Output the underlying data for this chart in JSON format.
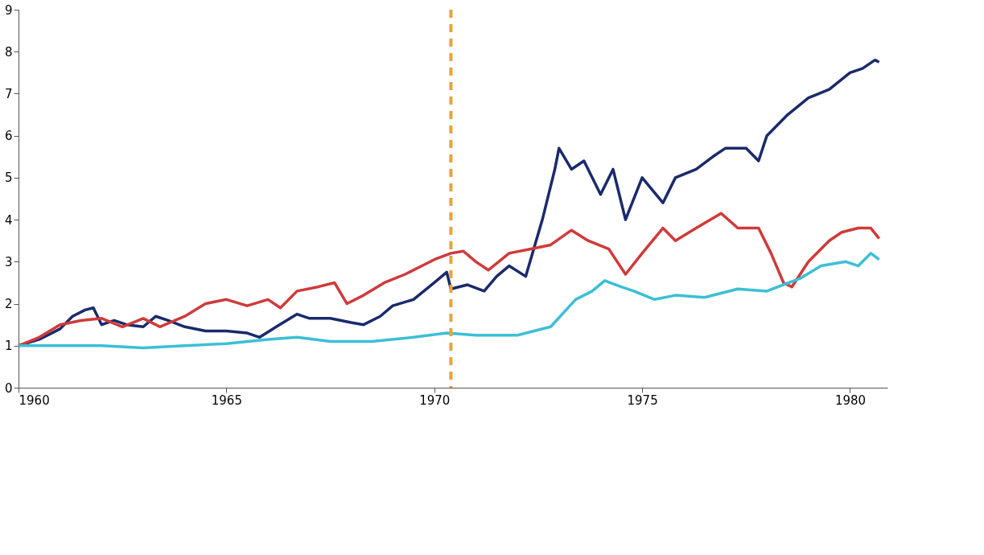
{
  "chart_data": {
    "type": "line",
    "xlim": [
      1960,
      1980.9
    ],
    "xticks": [
      1960,
      1965,
      1970,
      1975,
      1980
    ],
    "ylim": [
      0,
      9
    ],
    "yticks": [
      0,
      1,
      2,
      3,
      4,
      5,
      6,
      7,
      8,
      9
    ],
    "grid": false,
    "line_style": "solid",
    "ref_lines": [
      {
        "axis": "x",
        "value": 1970.4,
        "color": "#e8a33a",
        "line_style": "dashed"
      }
    ],
    "series": [
      {
        "color": "#1a2a6c",
        "x": [
          1960,
          1960.5,
          1961,
          1961.3,
          1961.6,
          1961.8,
          1962,
          1962.3,
          1962.6,
          1963,
          1963.3,
          1963.6,
          1964,
          1964.5,
          1965,
          1965.5,
          1965.8,
          1966.2,
          1966.7,
          1967,
          1967.5,
          1968,
          1968.3,
          1968.7,
          1969,
          1969.5,
          1970,
          1970.3,
          1970.4,
          1970.8,
          1971.2,
          1971.5,
          1971.8,
          1972.2,
          1972.6,
          1972.9,
          1973.0,
          1973.3,
          1973.6,
          1974,
          1974.3,
          1974.6,
          1975,
          1975.5,
          1975.8,
          1976.3,
          1976.7,
          1977,
          1977.5,
          1977.8,
          1978,
          1978.5,
          1979,
          1979.5,
          1980,
          1980.3,
          1980.6,
          1980.7
        ],
        "values": [
          1.0,
          1.15,
          1.4,
          1.7,
          1.85,
          1.9,
          1.5,
          1.6,
          1.5,
          1.45,
          1.7,
          1.6,
          1.45,
          1.35,
          1.35,
          1.3,
          1.2,
          1.45,
          1.75,
          1.65,
          1.65,
          1.55,
          1.5,
          1.7,
          1.95,
          2.1,
          2.5,
          2.75,
          2.35,
          2.45,
          2.3,
          2.65,
          2.9,
          2.65,
          4.0,
          5.2,
          5.7,
          5.2,
          5.4,
          4.6,
          5.2,
          4.0,
          5.0,
          4.4,
          5.0,
          5.2,
          5.5,
          5.7,
          5.7,
          5.4,
          6.0,
          6.5,
          6.9,
          7.1,
          7.5,
          7.6,
          7.8,
          7.75
        ]
      },
      {
        "color": "#d03a3a",
        "x": [
          1960,
          1960.5,
          1961,
          1961.5,
          1962,
          1962.5,
          1963,
          1963.4,
          1964,
          1964.5,
          1965,
          1965.5,
          1966,
          1966.3,
          1966.7,
          1967.2,
          1967.6,
          1967.9,
          1968.3,
          1968.8,
          1969.3,
          1969.8,
          1970.0,
          1970.4,
          1970.7,
          1971,
          1971.3,
          1971.8,
          1972.3,
          1972.8,
          1973.3,
          1973.7,
          1974.2,
          1974.6,
          1975,
          1975.5,
          1975.8,
          1976.3,
          1976.9,
          1977.3,
          1977.8,
          1978.1,
          1978.4,
          1978.6,
          1979,
          1979.5,
          1979.8,
          1980.2,
          1980.5,
          1980.7
        ],
        "values": [
          1.0,
          1.2,
          1.5,
          1.6,
          1.65,
          1.45,
          1.65,
          1.45,
          1.7,
          2.0,
          2.1,
          1.95,
          2.1,
          1.9,
          2.3,
          2.4,
          2.5,
          2.0,
          2.2,
          2.5,
          2.7,
          2.95,
          3.05,
          3.2,
          3.25,
          3.0,
          2.8,
          3.2,
          3.3,
          3.4,
          3.75,
          3.5,
          3.3,
          2.7,
          3.2,
          3.8,
          3.5,
          3.8,
          4.15,
          3.8,
          3.8,
          3.2,
          2.5,
          2.4,
          3.0,
          3.5,
          3.7,
          3.8,
          3.8,
          3.55
        ]
      },
      {
        "color": "#3bbfd6",
        "x": [
          1960,
          1961,
          1962,
          1963,
          1964,
          1965,
          1966,
          1966.7,
          1967.5,
          1968.5,
          1969.5,
          1970.3,
          1971,
          1972,
          1972.8,
          1973.4,
          1973.8,
          1974.1,
          1974.5,
          1974.8,
          1975.3,
          1975.8,
          1976.5,
          1977.3,
          1978,
          1978.8,
          1979.3,
          1979.9,
          1980.2,
          1980.5,
          1980.7
        ],
        "values": [
          1.0,
          1.0,
          1.0,
          0.95,
          1.0,
          1.05,
          1.15,
          1.2,
          1.1,
          1.1,
          1.2,
          1.3,
          1.25,
          1.25,
          1.45,
          2.1,
          2.3,
          2.55,
          2.4,
          2.3,
          2.1,
          2.2,
          2.15,
          2.35,
          2.3,
          2.6,
          2.9,
          3.0,
          2.9,
          3.2,
          3.05
        ]
      }
    ]
  }
}
